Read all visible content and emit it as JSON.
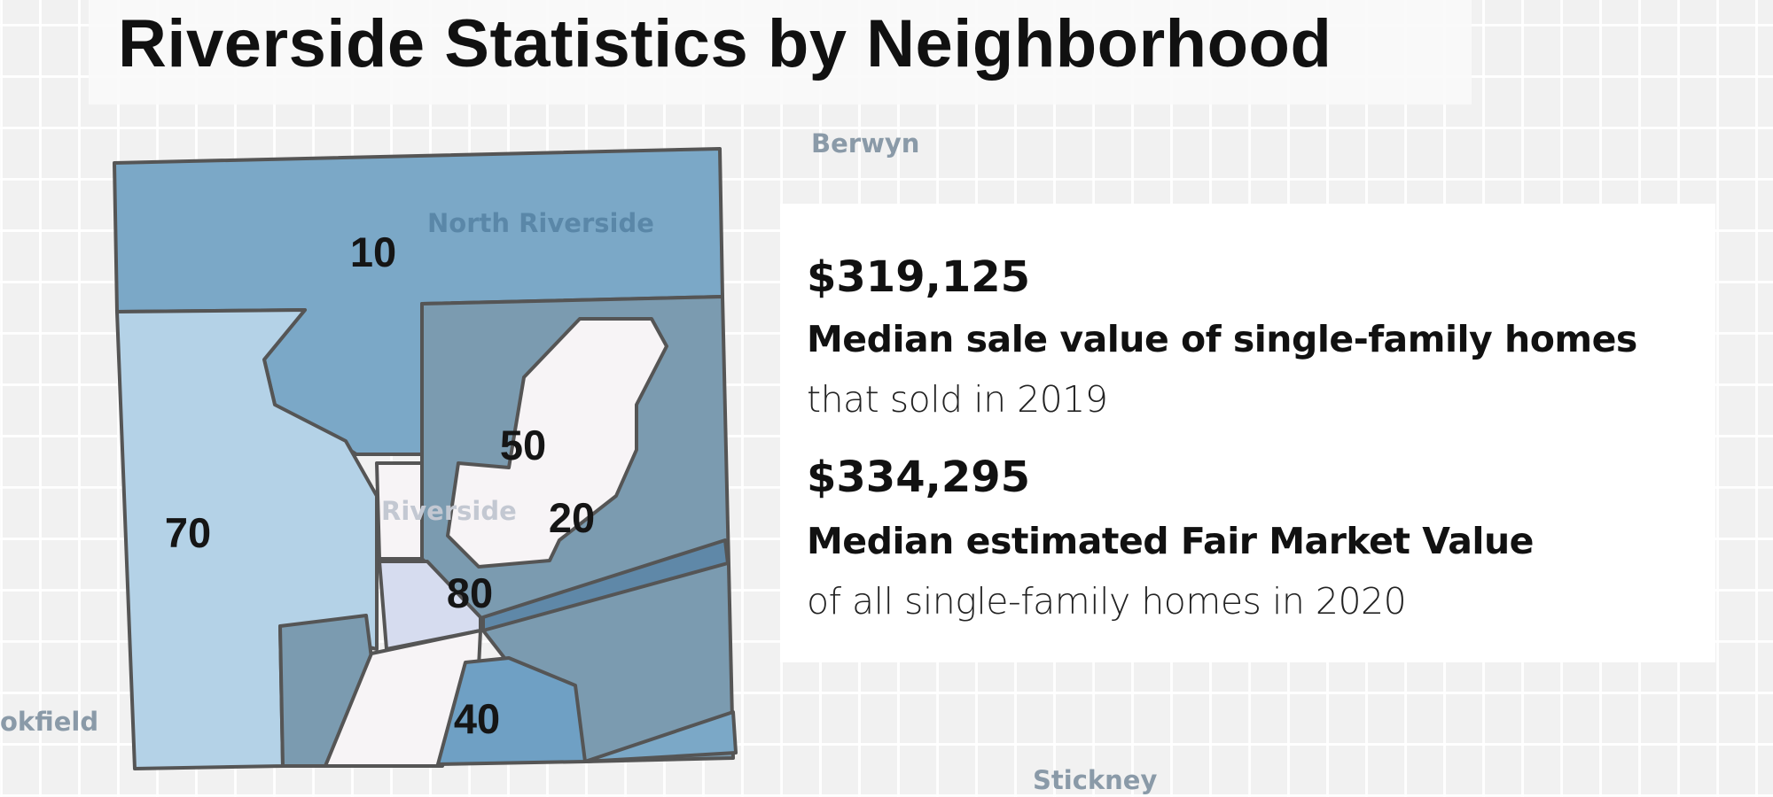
{
  "title": "Riverside Statistics by Neighborhood",
  "map": {
    "place_labels": {
      "berwyn": "Berwyn",
      "north_riverside": "North Riverside",
      "riverside": "Riverside",
      "brookfield": "okfield",
      "stickney": "Stickney"
    },
    "neighborhoods": [
      "10",
      "70",
      "50",
      "20",
      "80",
      "40"
    ],
    "colors": {
      "light_blue": "#b4d2e7",
      "mid_blue": "#7ba8c7",
      "slate": "#7b9bb0",
      "white": "#f7f4f6",
      "lavender": "#d6dcef"
    }
  },
  "stats": [
    {
      "value": "$319,125",
      "label": "Median sale value of single-family homes",
      "sub": "that sold in 2019"
    },
    {
      "value": "$334,295",
      "label": "Median estimated Fair Market Value",
      "sub": "of all single-family homes in 2020"
    }
  ]
}
